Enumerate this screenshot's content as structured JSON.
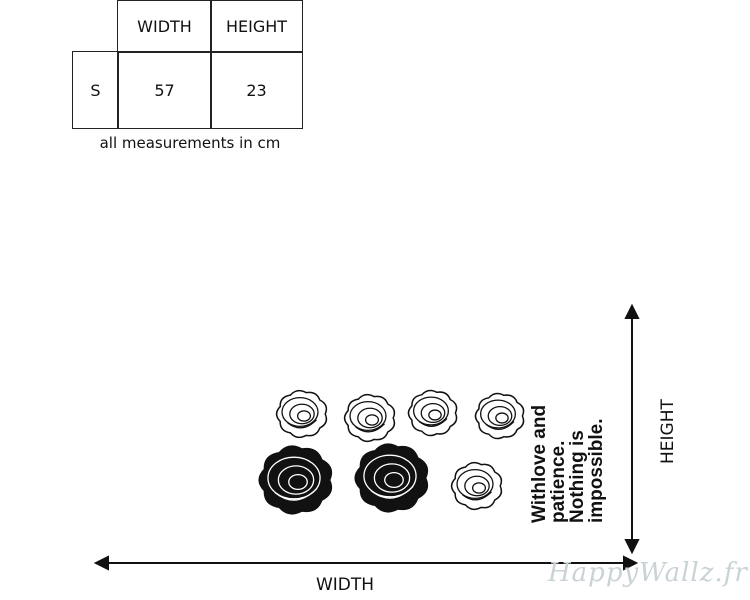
{
  "size_table": {
    "headers": [
      "WIDTH",
      "HEIGHT"
    ],
    "rows": [
      {
        "size": "S",
        "width": "57",
        "height": "23"
      }
    ],
    "caption": "all measurements in cm"
  },
  "dimension_labels": {
    "height": "HEIGHT",
    "width": "WIDTH"
  },
  "decal": {
    "quote_lines": [
      "Withlove and",
      "patience.",
      "Nothing  is",
      "impossible."
    ],
    "outline_roses": 5,
    "filled_roses": 2
  },
  "watermark": "HappyWallz.fr"
}
